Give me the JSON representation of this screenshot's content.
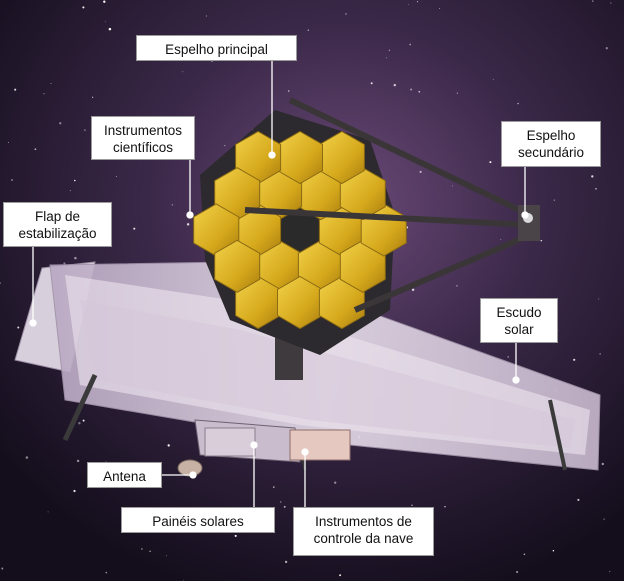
{
  "image": {
    "subject": "James Webb Space Telescope",
    "background": "starfield-nebula",
    "colors": {
      "mirror_gold": "#d9b21f",
      "space": "#1a1226",
      "sunshield": "#cfc3d6",
      "label_bg": "#ffffff",
      "leader_line": "#ffffff"
    }
  },
  "labels": {
    "espelho_principal": "Espelho principal",
    "instrumentos_cientificos": "Instrumentos\ncientíficos",
    "espelho_secundario": "Espelho\nsecundário",
    "flap": "Flap de\nestabilização",
    "escudo_solar": "Escudo\nsolar",
    "antena": "Antena",
    "paineis_solares": "Painéis solares",
    "instrumentos_controle": "Instrumentos de\ncontrole da nave"
  }
}
